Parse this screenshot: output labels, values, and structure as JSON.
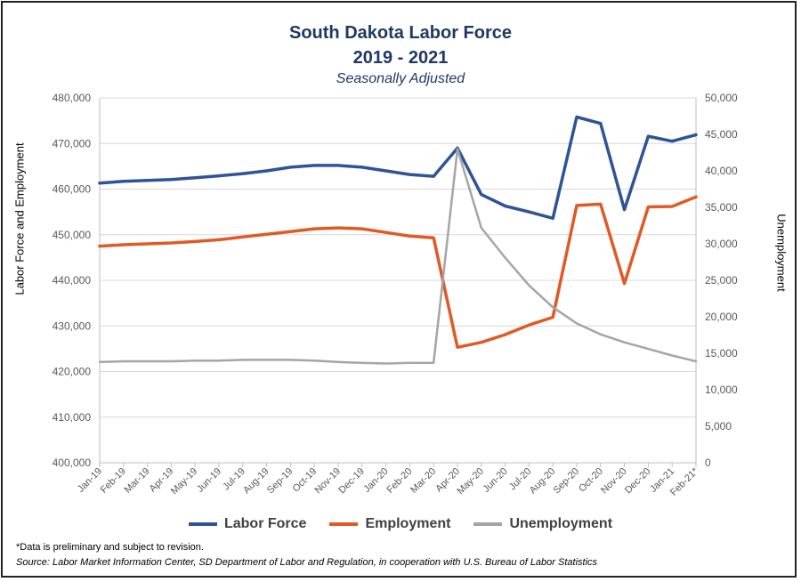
{
  "chart_data": {
    "type": "line",
    "title": "South Dakota Labor Force",
    "title_line2": "2019 - 2021",
    "subtitle": "Seasonally Adjusted",
    "ylabel_left": "Labor  Force and Employment",
    "ylabel_right": "Unemployment",
    "ylim_left": [
      400000,
      480000
    ],
    "ylim_right": [
      0,
      50000
    ],
    "yticks_left": [
      "400,000",
      "410,000",
      "420,000",
      "430,000",
      "440,000",
      "450,000",
      "460,000",
      "470,000",
      "480,000"
    ],
    "yticks_right": [
      "0",
      "5,000",
      "10,000",
      "15,000",
      "20,000",
      "25,000",
      "30,000",
      "35,000",
      "40,000",
      "45,000",
      "50,000"
    ],
    "categories": [
      "Jan-19",
      "Feb-19",
      "Mar-19",
      "Apr-19",
      "May-19",
      "Jun-19",
      "Jul-19",
      "Aug-19",
      "Sep-19",
      "Oct-19",
      "Nov-19",
      "Dec-19",
      "Jan-20",
      "Feb-20",
      "Mar-20",
      "Apr-20",
      "May-20",
      "Jun-20",
      "Jul-20",
      "Aug-20",
      "Sep-20",
      "Oct-20",
      "Nov-20",
      "Dec-20",
      "Jan-21",
      "Feb-21*"
    ],
    "grid": true,
    "legend_position": "bottom",
    "series": [
      {
        "name": "Labor Force",
        "axis": "left",
        "color": "#2f5496",
        "values": [
          461300,
          461700,
          461900,
          462100,
          462500,
          462900,
          463400,
          464000,
          464800,
          465200,
          465200,
          464800,
          464000,
          463200,
          462800,
          469000,
          458800,
          456300,
          455000,
          453600,
          475800,
          474400,
          455500,
          471600,
          470500,
          471900
        ]
      },
      {
        "name": "Employment",
        "axis": "left",
        "color": "#e05a26",
        "values": [
          447500,
          447800,
          448000,
          448200,
          448500,
          448900,
          449500,
          450100,
          450700,
          451300,
          451500,
          451300,
          450500,
          449700,
          449300,
          425300,
          426400,
          428100,
          430200,
          431900,
          456400,
          456700,
          439300,
          456100,
          456200,
          458300
        ]
      },
      {
        "name": "Unemployment",
        "axis": "right",
        "color": "#a5a5a5",
        "values": [
          13800,
          13900,
          13900,
          13900,
          14000,
          14000,
          14100,
          14100,
          14100,
          14000,
          13800,
          13700,
          13600,
          13700,
          13700,
          43000,
          32200,
          28100,
          24300,
          21300,
          19100,
          17600,
          16500,
          15600,
          14700,
          13900
        ]
      }
    ]
  },
  "footer": {
    "note": "*Data is preliminary and subject to revision.",
    "source": "Source:  Labor Market Information Center, SD Department of Labor and Regulation, in cooperation with U.S. Bureau of Labor Statistics"
  }
}
